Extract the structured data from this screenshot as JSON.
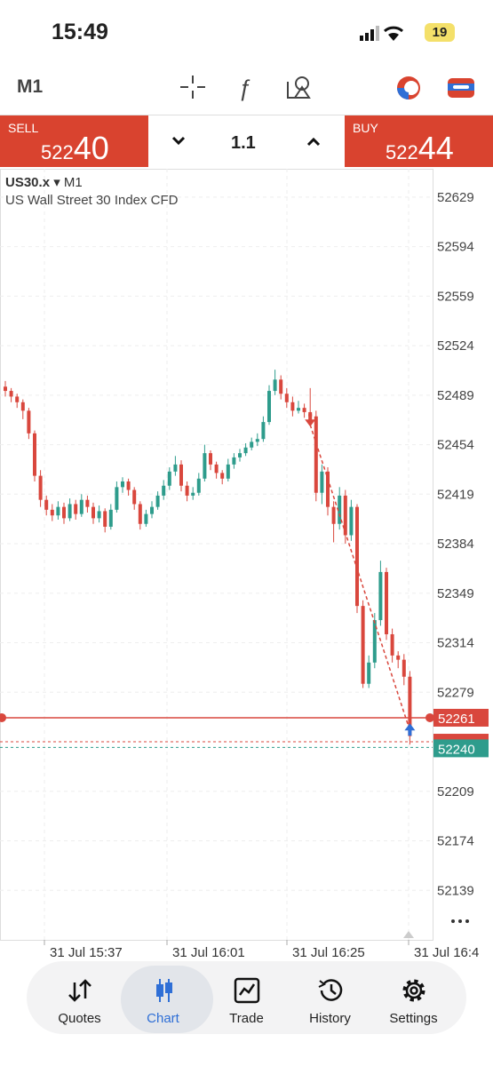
{
  "status": {
    "time": "15:49",
    "battery": "19"
  },
  "toolbar": {
    "timeframe": "M1"
  },
  "trade_panel": {
    "sell": {
      "label": "SELL",
      "price_small": "522",
      "price_big": "40"
    },
    "volume": "1.1",
    "buy": {
      "label": "BUY",
      "price_small": "522",
      "price_big": "44"
    }
  },
  "chart_data": {
    "type": "candlestick",
    "symbol": "US30.x",
    "symbol_caret": "▾",
    "timeframe": "M1",
    "description": "US Wall Street 30 Index CFD",
    "ylim": [
      52104,
      52649
    ],
    "yticks": [
      52629,
      52594,
      52559,
      52524,
      52489,
      52454,
      52419,
      52384,
      52349,
      52314,
      52279,
      52209,
      52174,
      52139
    ],
    "xticks": [
      "31 Jul 15:37",
      "31 Jul 16:01",
      "31 Jul 16:25",
      "31 Jul 16:4"
    ],
    "up_color": "#2e9c8c",
    "down_color": "#d9473d",
    "candles": [
      [
        52495,
        52499,
        52488,
        52492
      ],
      [
        52492,
        52494,
        52484,
        52488
      ],
      [
        52488,
        52490,
        52480,
        52484
      ],
      [
        52484,
        52486,
        52472,
        52478
      ],
      [
        52478,
        52480,
        52458,
        52462
      ],
      [
        52462,
        52464,
        52428,
        52432
      ],
      [
        52432,
        52436,
        52410,
        52415
      ],
      [
        52415,
        52418,
        52404,
        52408
      ],
      [
        52408,
        52412,
        52400,
        52404
      ],
      [
        52404,
        52414,
        52401,
        52410
      ],
      [
        52410,
        52413,
        52398,
        52402
      ],
      [
        52402,
        52416,
        52400,
        52412
      ],
      [
        52412,
        52415,
        52401,
        52405
      ],
      [
        52405,
        52419,
        52403,
        52415
      ],
      [
        52415,
        52418,
        52406,
        52410
      ],
      [
        52410,
        52413,
        52398,
        52402
      ],
      [
        52402,
        52411,
        52399,
        52407
      ],
      [
        52407,
        52409,
        52392,
        52396
      ],
      [
        52396,
        52412,
        52394,
        52408
      ],
      [
        52408,
        52428,
        52406,
        52424
      ],
      [
        52424,
        52431,
        52420,
        52428
      ],
      [
        52428,
        52430,
        52418,
        52422
      ],
      [
        52422,
        52424,
        52408,
        52412
      ],
      [
        52412,
        52414,
        52394,
        52398
      ],
      [
        52398,
        52408,
        52396,
        52405
      ],
      [
        52405,
        52414,
        52402,
        52410
      ],
      [
        52410,
        52421,
        52408,
        52418
      ],
      [
        52418,
        52429,
        52415,
        52425
      ],
      [
        52425,
        52438,
        52422,
        52435
      ],
      [
        52435,
        52446,
        52432,
        52440
      ],
      [
        52440,
        52443,
        52421,
        52425
      ],
      [
        52425,
        52428,
        52414,
        52418
      ],
      [
        52418,
        52424,
        52415,
        52420
      ],
      [
        52420,
        52434,
        52418,
        52430
      ],
      [
        52430,
        52454,
        52428,
        52448
      ],
      [
        52448,
        52450,
        52436,
        52440
      ],
      [
        52440,
        52442,
        52430,
        52434
      ],
      [
        52434,
        52436,
        52426,
        52430
      ],
      [
        52430,
        52444,
        52428,
        52440
      ],
      [
        52440,
        52448,
        52437,
        52445
      ],
      [
        52445,
        52451,
        52442,
        52448
      ],
      [
        52448,
        52455,
        52446,
        52452
      ],
      [
        52452,
        52459,
        52450,
        52456
      ],
      [
        52456,
        52462,
        52453,
        52458
      ],
      [
        52458,
        52474,
        52456,
        52470
      ],
      [
        52470,
        52496,
        52468,
        52492
      ],
      [
        52492,
        52507,
        52489,
        52500
      ],
      [
        52500,
        52503,
        52486,
        52490
      ],
      [
        52490,
        52494,
        52480,
        52484
      ],
      [
        52484,
        52488,
        52474,
        52478
      ],
      [
        52478,
        52485,
        52476,
        52480
      ],
      [
        52480,
        52483,
        52473,
        52477
      ],
      [
        52477,
        52494,
        52470,
        52474
      ],
      [
        52474,
        52478,
        52414,
        52420
      ],
      [
        52420,
        52440,
        52412,
        52435
      ],
      [
        52435,
        52438,
        52404,
        52410
      ],
      [
        52410,
        52414,
        52385,
        52398
      ],
      [
        52398,
        52424,
        52394,
        52418
      ],
      [
        52418,
        52422,
        52384,
        52390
      ],
      [
        52390,
        52415,
        52386,
        52410
      ],
      [
        52410,
        52412,
        52335,
        52340
      ],
      [
        52340,
        52344,
        52282,
        52285
      ],
      [
        52285,
        52305,
        52282,
        52300
      ],
      [
        52300,
        52335,
        52296,
        52330
      ],
      [
        52330,
        52372,
        52326,
        52364
      ],
      [
        52364,
        52367,
        52316,
        52320
      ],
      [
        52320,
        52324,
        52300,
        52305
      ],
      [
        52305,
        52308,
        52296,
        52302
      ],
      [
        52302,
        52306,
        52284,
        52290
      ],
      [
        52290,
        52294,
        52242,
        52248
      ]
    ],
    "trade": {
      "entry": 52468,
      "exit": 52252
    },
    "position_line": 52261,
    "ask_line": 52244,
    "bid_line": 52240
  },
  "tabs": [
    "Quotes",
    "Chart",
    "Trade",
    "History",
    "Settings"
  ]
}
